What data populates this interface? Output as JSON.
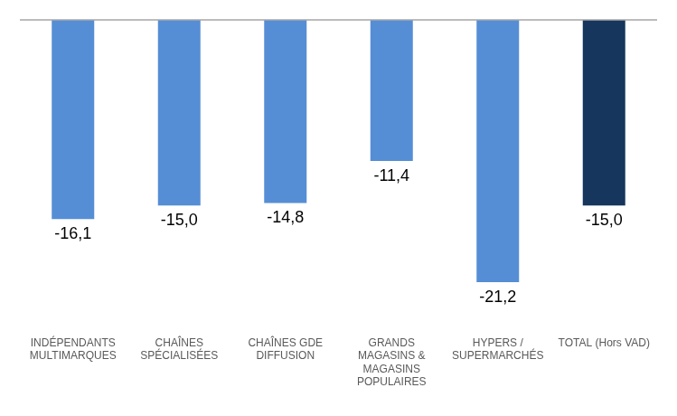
{
  "chart_data": {
    "type": "bar",
    "categories": [
      [
        "INDÉPENDANTS",
        "MULTIMARQUES"
      ],
      [
        "CHAÎNES",
        "SPÉCIALISÉES"
      ],
      [
        "CHAÎNES GDE",
        "DIFFUSION"
      ],
      [
        "GRANDS",
        "MAGASINS &",
        "MAGASINS",
        "POPULAIRES"
      ],
      [
        "HYPERS /",
        "SUPERMARCHÉS"
      ],
      [
        "TOTAL (Hors VAD)"
      ]
    ],
    "values": [
      -16.1,
      -15.0,
      -14.8,
      -11.4,
      -21.2,
      -15.0
    ],
    "value_labels": [
      "-16,1",
      "-15,0",
      "-14,8",
      "-11,4",
      "-21,2",
      "-15,0"
    ],
    "colors": [
      "#558ed5",
      "#558ed5",
      "#558ed5",
      "#558ed5",
      "#558ed5",
      "#17365d"
    ],
    "ylim": [
      -24,
      0
    ],
    "grid": false,
    "data_labels": true,
    "tick_labels": "x"
  }
}
